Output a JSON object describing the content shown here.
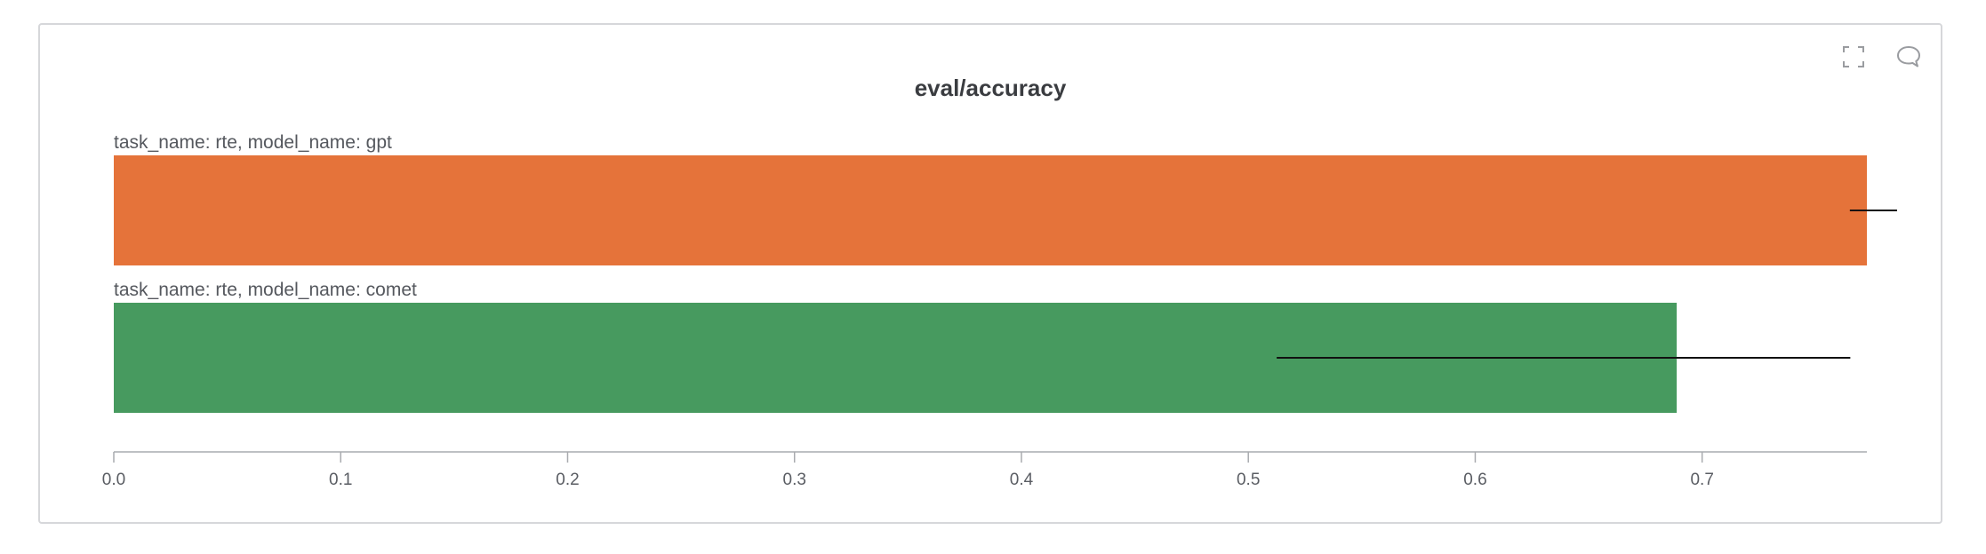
{
  "panel": {
    "icons": {
      "fullscreen": "fullscreen-icon",
      "comment": "comment-icon"
    }
  },
  "chart_data": {
    "type": "bar",
    "orientation": "horizontal",
    "title": "eval/accuracy",
    "categories": [
      "task_name: rte, model_name: gpt",
      "task_name: rte, model_name: comet"
    ],
    "values": [
      0.7726,
      0.6888
    ],
    "error_bars": [
      {
        "low": 0.7651,
        "high": 0.7859
      },
      {
        "low": 0.5125,
        "high": 0.7653
      }
    ],
    "colors": [
      "#e5733a",
      "#479a5f"
    ],
    "xlim": [
      0,
      0.7726
    ],
    "xticks": [
      "0.0",
      "0.1",
      "0.2",
      "0.3",
      "0.4",
      "0.5",
      "0.6",
      "0.7"
    ],
    "xlabel": "",
    "ylabel": "",
    "grid": false,
    "legend": "none"
  }
}
